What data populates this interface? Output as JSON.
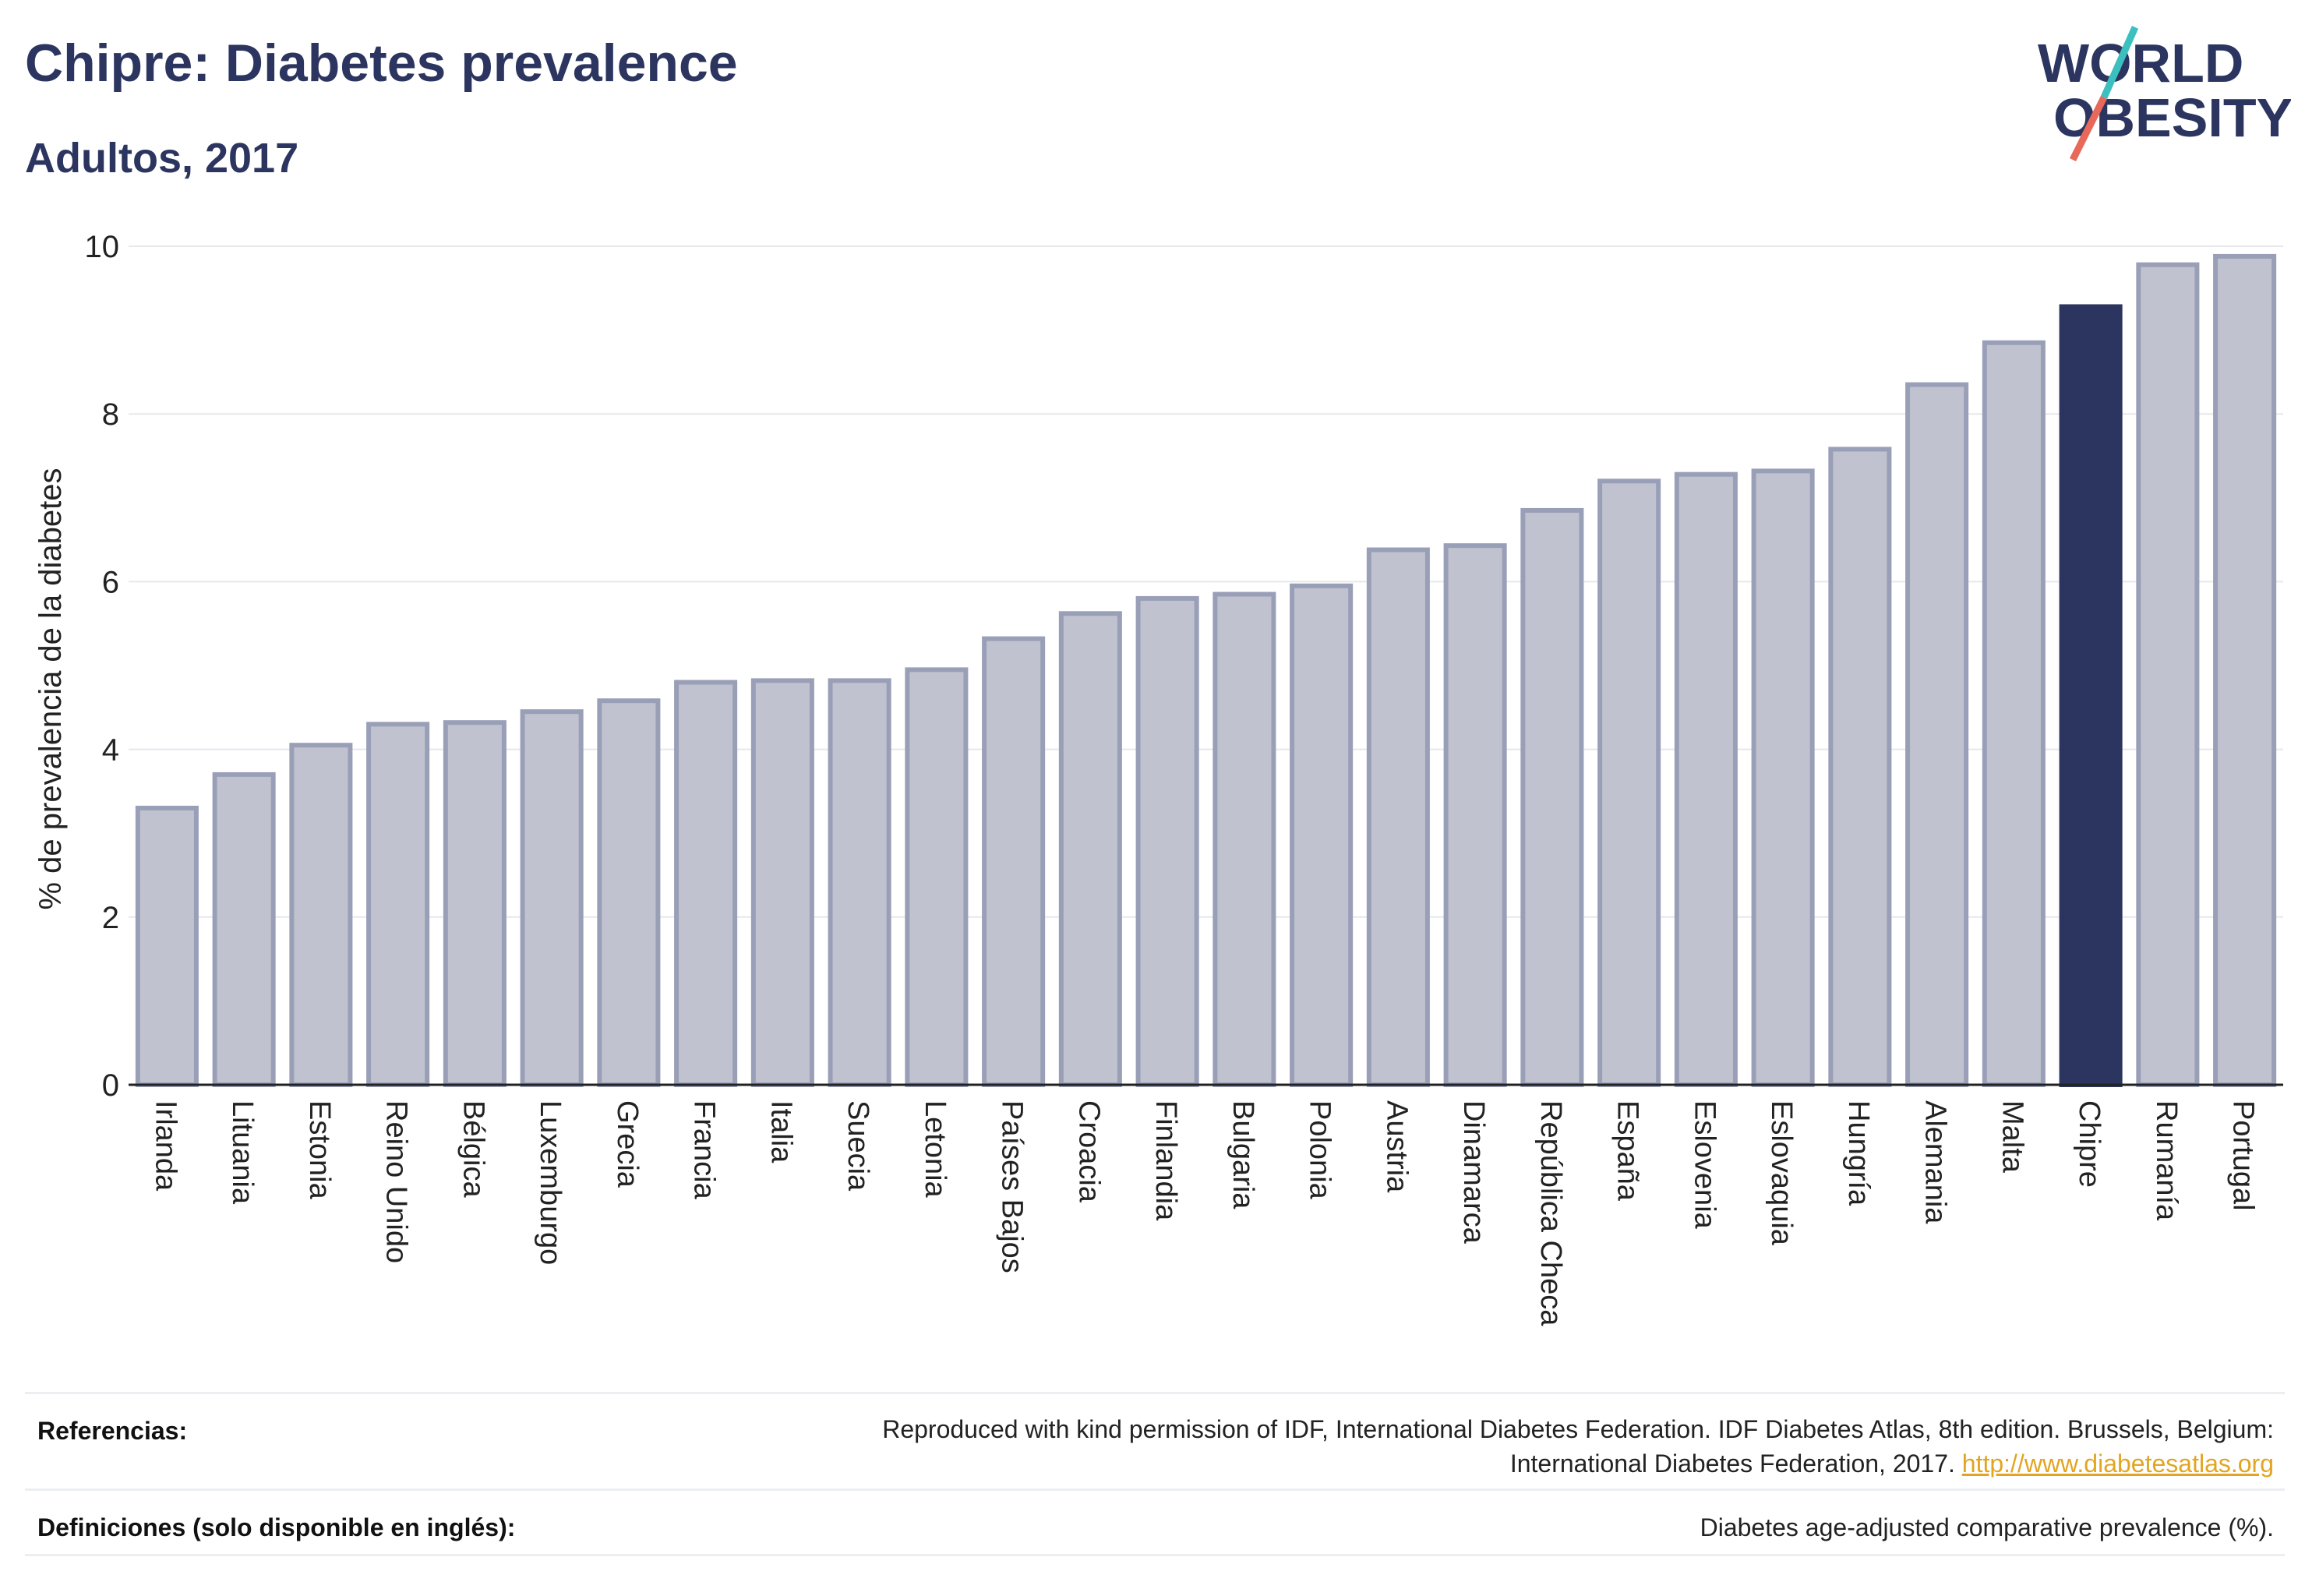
{
  "header": {
    "title": "Chipre: Diabetes prevalence",
    "subtitle": "Adultos, 2017"
  },
  "logo": {
    "line1": "WORLD",
    "line2": "OBESITY",
    "colors": {
      "text": "#2b355f",
      "slash_top": "#3bbfbf",
      "slash_bottom": "#e8685a"
    }
  },
  "chart_data": {
    "type": "bar",
    "ylabel": "% de prevalencia de la diabetes",
    "xlabel": "",
    "ylim": [
      0,
      10
    ],
    "yticks": [
      0,
      2,
      4,
      6,
      8,
      10
    ],
    "grid": true,
    "highlight": "Chipre",
    "colors": {
      "bar": "#c0c3cf",
      "bar_border": "#9a9fb8",
      "highlight": "#2b355f",
      "grid": "#e6e8ec"
    },
    "categories": [
      "Irlanda",
      "Lituania",
      "Estonia",
      "Reino Unido",
      "Bélgica",
      "Luxemburgo",
      "Grecia",
      "Francia",
      "Italia",
      "Suecia",
      "Letonia",
      "Países Bajos",
      "Croacia",
      "Finlandia",
      "Bulgaria",
      "Polonia",
      "Austria",
      "Dinamarca",
      "República Checa",
      "España",
      "Eslovenia",
      "Eslovaquia",
      "Hungría",
      "Alemania",
      "Malta",
      "Chipre",
      "Rumanía",
      "Portugal"
    ],
    "values": [
      3.3,
      3.7,
      4.05,
      4.3,
      4.32,
      4.45,
      4.58,
      4.8,
      4.82,
      4.82,
      4.95,
      5.32,
      5.62,
      5.8,
      5.85,
      5.95,
      6.38,
      6.43,
      6.85,
      7.2,
      7.28,
      7.32,
      7.58,
      8.35,
      8.85,
      9.28,
      9.78,
      9.88
    ]
  },
  "footer": {
    "references_label": "Referencias:",
    "references_line1": "Reproduced with kind permission of IDF, International Diabetes Federation. IDF Diabetes Atlas, 8th edition. Brussels, Belgium:",
    "references_line2": "International Diabetes Federation, 2017.",
    "references_link": "http://www.diabetesatlas.org",
    "definitions_label": "Definiciones (solo disponible en inglés):",
    "definitions_text": "Diabetes age-adjusted comparative prevalence (%)."
  }
}
